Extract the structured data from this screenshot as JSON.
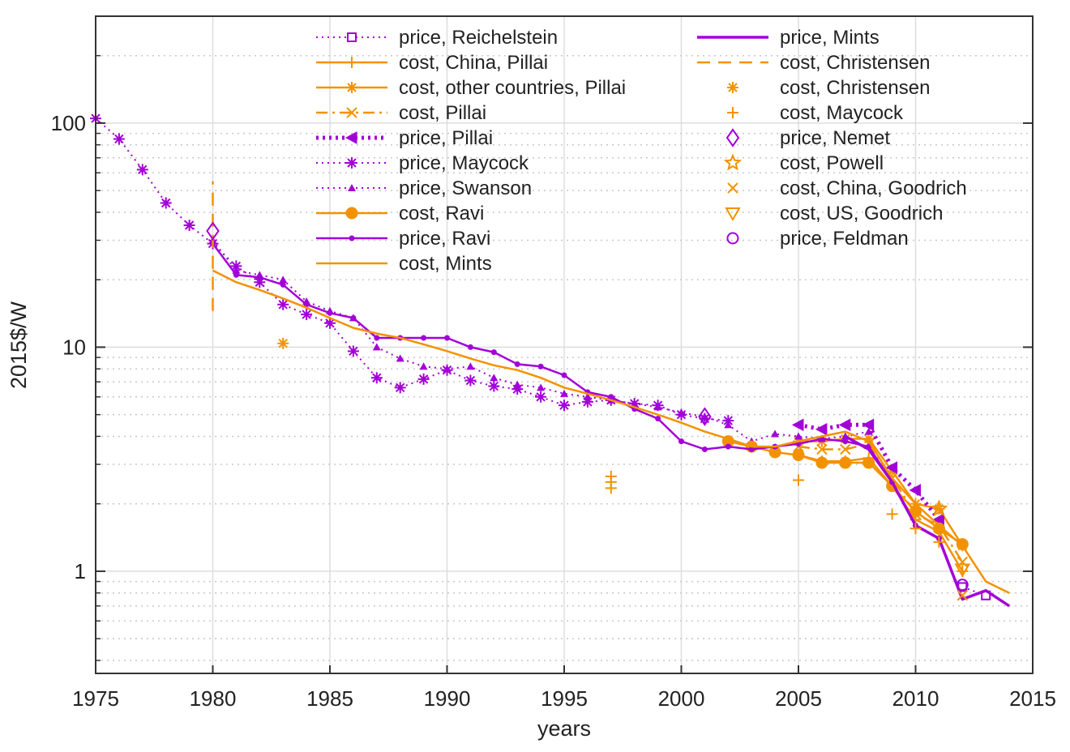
{
  "chart_data": {
    "type": "line",
    "title": "",
    "xlabel": "years",
    "ylabel": "2015$/W",
    "xlim": [
      1975,
      2015
    ],
    "ylim": [
      0.35,
      300
    ],
    "yscale": "log",
    "grid": true,
    "legend_position": "top, two columns",
    "x_ticks": [
      "1975",
      "1980",
      "1985",
      "1990",
      "1995",
      "2000",
      "2005",
      "2010",
      "2015"
    ],
    "y_ticks": [
      "1",
      "10",
      "100"
    ],
    "colors": {
      "price": "#a200d8",
      "cost": "#f39200"
    },
    "series": [
      {
        "name": "price, Reichelstein",
        "color": "#a200d8",
        "line": "dotted",
        "marker": "square",
        "x": [
          2012,
          2013
        ],
        "y": [
          0.85,
          0.78
        ]
      },
      {
        "name": "cost, China, Pillai",
        "color": "#f39200",
        "line": "solid",
        "marker": "plus",
        "x": [
          2005,
          2006,
          2007,
          2008,
          2009,
          2010,
          2011,
          2012
        ],
        "y": [
          3.3,
          3.1,
          3.1,
          3.2,
          2.4,
          1.7,
          1.5,
          1.0
        ]
      },
      {
        "name": "cost, other countries, Pillai",
        "color": "#f39200",
        "line": "solid",
        "marker": "asterisk",
        "x": [
          2005,
          2006,
          2007,
          2008,
          2009,
          2010,
          2011,
          2012
        ],
        "y": [
          3.8,
          3.8,
          3.9,
          3.9,
          2.8,
          2.0,
          1.9,
          1.3
        ]
      },
      {
        "name": "cost, Pillai",
        "color": "#f39200",
        "line": "dashdot",
        "marker": "x",
        "x": [
          2005,
          2006,
          2007,
          2008,
          2009,
          2010,
          2011,
          2012
        ],
        "y": [
          3.6,
          3.5,
          3.5,
          3.7,
          2.6,
          1.8,
          1.6,
          1.1
        ]
      },
      {
        "name": "price, Pillai",
        "color": "#a200d8",
        "line": "thick-dotted",
        "marker": "triangle-left",
        "x": [
          2005,
          2006,
          2007,
          2008,
          2009,
          2010,
          2011
        ],
        "y": [
          4.5,
          4.3,
          4.5,
          4.5,
          2.9,
          2.3,
          1.7
        ]
      },
      {
        "name": "price, Maycock",
        "color": "#a200d8",
        "line": "dotted",
        "marker": "asterisk",
        "x": [
          1975,
          1976,
          1977,
          1978,
          1979,
          1980,
          1981,
          1982,
          1983,
          1984,
          1985,
          1986,
          1987,
          1988,
          1989,
          1990,
          1991,
          1992,
          1993,
          1994,
          1995,
          1996,
          1997,
          1998,
          1999,
          2000,
          2001,
          2002
        ],
        "y": [
          105,
          85,
          62,
          44,
          35,
          29,
          23,
          19.5,
          15.5,
          14,
          12.8,
          9.6,
          7.3,
          6.6,
          7.2,
          7.9,
          7.1,
          6.7,
          6.5,
          6.0,
          5.5,
          5.7,
          5.8,
          5.6,
          5.5,
          5.0,
          4.8,
          4.7
        ]
      },
      {
        "name": "price, Swanson",
        "color": "#a200d8",
        "line": "dotted",
        "marker": "triangle",
        "x": [
          1980,
          1981,
          1982,
          1983,
          1984,
          1985,
          1986,
          1987,
          1988,
          1989,
          1990,
          1991,
          1992,
          1993,
          1994,
          1995,
          1996,
          1997,
          1998,
          1999,
          2000,
          2001,
          2002,
          2003,
          2004,
          2005,
          2006,
          2007,
          2008
        ],
        "y": [
          30,
          22,
          21,
          20,
          16,
          14.5,
          13.5,
          10,
          8.9,
          8.2,
          8.0,
          8.2,
          7.3,
          6.8,
          6.6,
          6.2,
          6.0,
          5.8,
          5.6,
          5.4,
          5.1,
          4.9,
          4.5,
          3.8,
          4.1,
          4.0,
          3.9,
          4.0,
          4.2
        ]
      },
      {
        "name": "cost, Ravi",
        "color": "#f39200",
        "line": "solid",
        "marker": "circle-filled",
        "x": [
          2002,
          2003,
          2004,
          2005,
          2006,
          2007,
          2008,
          2009,
          2010,
          2011,
          2012
        ],
        "y": [
          3.8,
          3.6,
          3.4,
          3.3,
          3.05,
          3.05,
          3.05,
          2.4,
          1.85,
          1.55,
          1.32
        ]
      },
      {
        "name": "price, Ravi",
        "color": "#a200d8",
        "line": "solid",
        "marker": "dot",
        "x": [
          1980,
          1981,
          1982,
          1983,
          1984,
          1985,
          1986,
          1987,
          1988,
          1989,
          1990,
          1991,
          1992,
          1993,
          1994,
          1995,
          1996,
          1997,
          1998,
          1999,
          2000,
          2001,
          2002,
          2003,
          2004,
          2005,
          2006,
          2007,
          2008,
          2009,
          2010,
          2011
        ],
        "y": [
          29,
          21,
          20.5,
          19,
          15.5,
          14.2,
          13.5,
          11,
          11,
          11,
          11,
          10,
          9.5,
          8.4,
          8.2,
          7.5,
          6.3,
          6.0,
          5.3,
          4.8,
          3.8,
          3.5,
          3.6,
          3.5,
          3.6,
          3.7,
          3.9,
          3.8,
          3.6,
          2.5,
          1.6,
          1.4
        ]
      },
      {
        "name": "cost, Mints",
        "color": "#f39200",
        "line": "solid",
        "marker": "none",
        "x": [
          1980,
          1981,
          1982,
          1983,
          1984,
          1985,
          1986,
          1987,
          1988,
          1989,
          1990,
          1991,
          1992,
          1993,
          1994,
          1995,
          1996,
          1997,
          1998,
          1999,
          2000,
          2001,
          2002,
          2003,
          2004,
          2005,
          2006,
          2007,
          2008,
          2009,
          2010,
          2011,
          2012,
          2013,
          2014
        ],
        "y": [
          22,
          19.5,
          18,
          16.5,
          15,
          13.5,
          12.2,
          11.5,
          11,
          10.3,
          9.6,
          8.9,
          8.3,
          7.9,
          7.3,
          6.6,
          6.2,
          5.8,
          5.4,
          5.0,
          4.6,
          4.2,
          3.9,
          3.6,
          3.6,
          3.8,
          4.0,
          4.2,
          3.8,
          2.6,
          2.0,
          1.6,
          1.3,
          0.9,
          0.8
        ]
      },
      {
        "name": "price, Mints",
        "color": "#a200d8",
        "line": "solid-thick",
        "marker": "none",
        "x": [
          2007,
          2008,
          2009,
          2010,
          2011,
          2012,
          2013,
          2014
        ],
        "y": [
          4.0,
          3.5,
          2.5,
          1.6,
          1.4,
          0.75,
          0.82,
          0.7
        ]
      },
      {
        "name": "cost, Christensen",
        "color": "#f39200",
        "line": "dashed",
        "marker": "none",
        "x": [
          1980,
          1980
        ],
        "y": [
          14.5,
          55
        ]
      },
      {
        "name": "cost, Christensen",
        "color": "#f39200",
        "line": "none",
        "marker": "asterisk",
        "x": [
          1983
        ],
        "y": [
          10.4
        ]
      },
      {
        "name": "cost, Maycock",
        "color": "#f39200",
        "line": "none",
        "marker": "plus",
        "x": [
          1997,
          1997,
          1997,
          2005,
          2009,
          2010,
          2011
        ],
        "y": [
          2.35,
          2.5,
          2.65,
          2.55,
          1.8,
          1.55,
          1.35
        ]
      },
      {
        "name": "price, Nemet",
        "color": "#a200d8",
        "line": "none",
        "marker": "diamond",
        "x": [
          1980,
          2001
        ],
        "y": [
          33,
          4.9
        ]
      },
      {
        "name": "cost, Powell",
        "color": "#f39200",
        "line": "none",
        "marker": "star",
        "x": [
          2011
        ],
        "y": [
          1.9
        ]
      },
      {
        "name": "cost, China, Goodrich",
        "color": "#f39200",
        "line": "none",
        "marker": "x",
        "x": [
          2012
        ],
        "y": [
          0.78
        ]
      },
      {
        "name": "cost, US, Goodrich",
        "color": "#f39200",
        "line": "none",
        "marker": "triangle-down",
        "x": [
          2012
        ],
        "y": [
          1.02
        ]
      },
      {
        "name": "price, Feldman",
        "color": "#a200d8",
        "line": "none",
        "marker": "circle",
        "x": [
          2012
        ],
        "y": [
          0.87
        ]
      }
    ]
  }
}
